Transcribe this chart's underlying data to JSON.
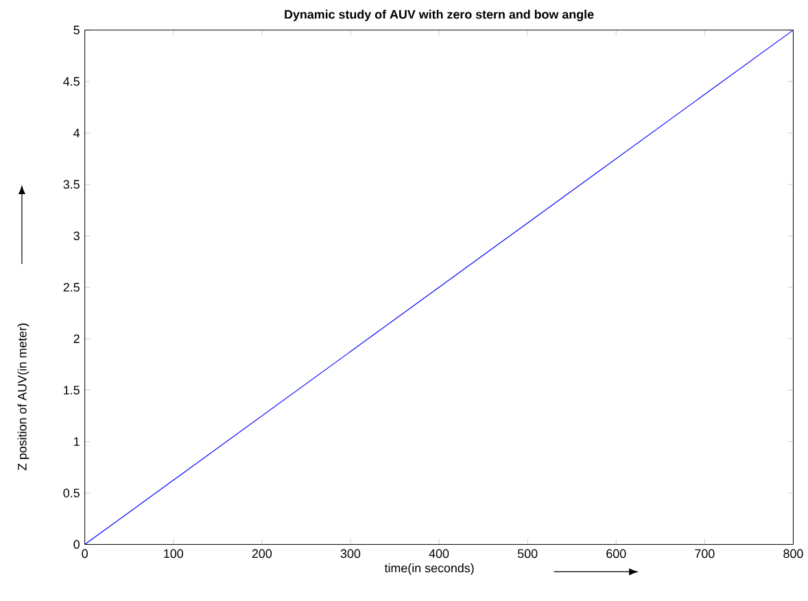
{
  "chart_data": {
    "type": "line",
    "title": "Dynamic study of AUV with zero stern and bow angle",
    "xlabel": "time(in seconds)",
    "ylabel": "Z position of AUV(in meter)",
    "x": [
      0,
      800
    ],
    "series": [
      {
        "color": "#0000ff",
        "values": [
          0,
          5
        ]
      }
    ],
    "xlim": [
      0,
      800
    ],
    "ylim": [
      0,
      5
    ],
    "xticks": [
      0,
      100,
      200,
      300,
      400,
      500,
      600,
      700,
      800
    ],
    "yticks": [
      0,
      0.5,
      1,
      1.5,
      2,
      2.5,
      3,
      3.5,
      4,
      4.5,
      5
    ]
  }
}
